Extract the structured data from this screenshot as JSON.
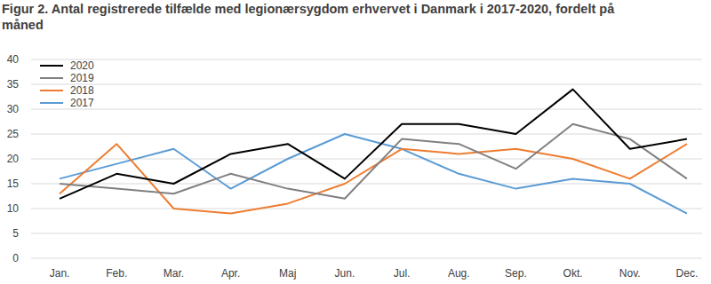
{
  "chart_data": {
    "type": "line",
    "title": "Figur 2. Antal registrerede tilfælde med legionærsygdom erhvervet i Danmark i 2017-2020, fordelt på måned",
    "categories": [
      "Jan.",
      "Feb.",
      "Mar.",
      "Apr.",
      "Maj",
      "Jun.",
      "Jul.",
      "Aug.",
      "Sep.",
      "Okt.",
      "Nov.",
      "Dec."
    ],
    "series": [
      {
        "name": "2020",
        "color": "#000000",
        "values": [
          12,
          17,
          15,
          21,
          23,
          16,
          27,
          27,
          25,
          34,
          22,
          24
        ]
      },
      {
        "name": "2019",
        "color": "#808080",
        "values": [
          15,
          14,
          13,
          17,
          14,
          12,
          24,
          23,
          18,
          27,
          24,
          16
        ]
      },
      {
        "name": "2018",
        "color": "#ed7d31",
        "values": [
          13,
          23,
          10,
          9,
          11,
          15,
          22,
          21,
          22,
          20,
          16,
          23
        ]
      },
      {
        "name": "2017",
        "color": "#5b9bd5",
        "values": [
          16,
          19,
          22,
          14,
          20,
          25,
          22,
          17,
          14,
          16,
          15,
          9
        ]
      }
    ],
    "ylim": [
      0,
      40
    ],
    "yticks": [
      0,
      5,
      10,
      15,
      20,
      25,
      30,
      35,
      40
    ],
    "grid": true,
    "legend": "top-left"
  }
}
